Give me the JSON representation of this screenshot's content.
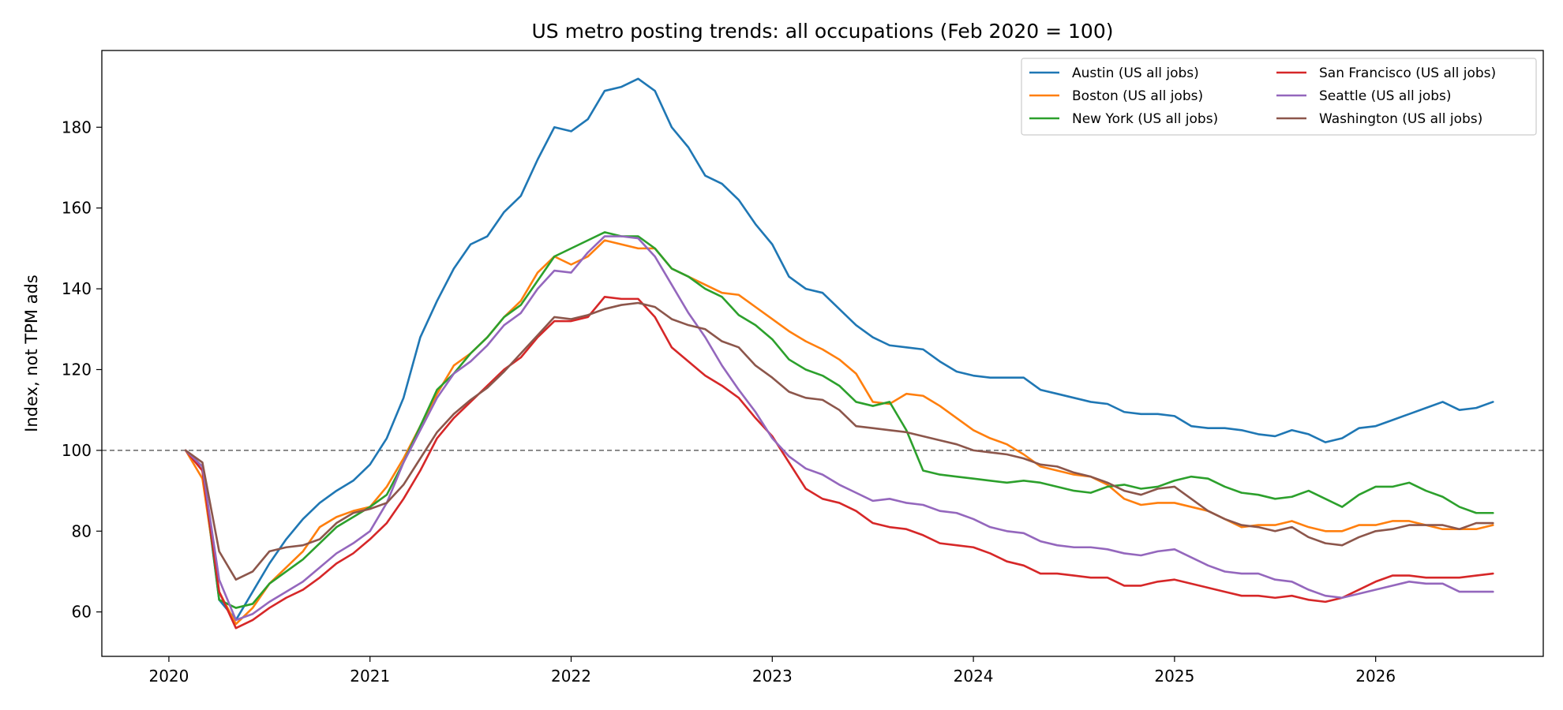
{
  "chart_data": {
    "type": "line",
    "title": "US metro posting trends: all occupations (Feb 2020 = 100)",
    "xlabel": "",
    "ylabel": "Index, not TPM ads",
    "x_start": "2020-02",
    "x_end": "2026-08",
    "x_frequency": "monthly",
    "xlim": [
      "2019-09",
      "2026-11"
    ],
    "ylim": [
      49,
      199
    ],
    "x_ticks": [
      "2020",
      "2021",
      "2022",
      "2023",
      "2024",
      "2025",
      "2026"
    ],
    "y_ticks": [
      60,
      80,
      100,
      120,
      140,
      160,
      180
    ],
    "reference_line": {
      "y": 100,
      "style": "dashed",
      "color": "#666666"
    },
    "grid": false,
    "legend": {
      "location": "top-right",
      "columns": 2
    },
    "series": [
      {
        "name": "Austin (US all jobs)",
        "color": "#1f77b4",
        "values": [
          100,
          95,
          63,
          58,
          65,
          72,
          78,
          83,
          87,
          90,
          92.5,
          96.5,
          103,
          113,
          128,
          137,
          145,
          151,
          153,
          159,
          163,
          172,
          180,
          179,
          182,
          189,
          190,
          192,
          189,
          180,
          175,
          168,
          166,
          162,
          156,
          151,
          143,
          140,
          139,
          135,
          131,
          128,
          126,
          125.5,
          125,
          122,
          119.5,
          118.5,
          118,
          118,
          118,
          115,
          114,
          113,
          112,
          111.5,
          109.5,
          109,
          109,
          108.5,
          106,
          105.5,
          105.5,
          105,
          104,
          103.5,
          105,
          104,
          102,
          103,
          105.5,
          106,
          107.5,
          109,
          110.5,
          112,
          110,
          110.5,
          112
        ]
      },
      {
        "name": "Boston (US all jobs)",
        "color": "#ff7f0e",
        "values": [
          100,
          93,
          65,
          57,
          61,
          67,
          71,
          75,
          81,
          83.5,
          85,
          86,
          91,
          98,
          106,
          114,
          121,
          124,
          128,
          133,
          137,
          144,
          148,
          146,
          148,
          152,
          151,
          150,
          150,
          145,
          143,
          141,
          139,
          138.5,
          135.5,
          132.5,
          129.5,
          127,
          125,
          122.5,
          119,
          112,
          111.5,
          114,
          113.5,
          111,
          108,
          105,
          103,
          101.5,
          99,
          96,
          95,
          94,
          93.5,
          91.5,
          88,
          86.5,
          87,
          87,
          86,
          85,
          83,
          81,
          81.5,
          81.5,
          82.5,
          81,
          80,
          80,
          81.5,
          81.5,
          82.5,
          82.5,
          81.5,
          80.5,
          80.5,
          80.5,
          81.5
        ]
      },
      {
        "name": "New York (US all jobs)",
        "color": "#2ca02c",
        "values": [
          100,
          96,
          63,
          61,
          62,
          67,
          70,
          73,
          77,
          81,
          83.5,
          86,
          89,
          97,
          106,
          115,
          119,
          124,
          128,
          133,
          136,
          142,
          148,
          150,
          152,
          154,
          153,
          153,
          150,
          145,
          143,
          140,
          138,
          133.5,
          131,
          127.5,
          122.5,
          120,
          118.5,
          116,
          112,
          111,
          112,
          105,
          95,
          94,
          93.5,
          93,
          92.5,
          92,
          92.5,
          92,
          91,
          90,
          89.5,
          91,
          91.5,
          90.5,
          91,
          92.5,
          93.5,
          93,
          91,
          89.5,
          89,
          88,
          88.5,
          90,
          88,
          86,
          89,
          91,
          91,
          92,
          90,
          88.5,
          86,
          84.5,
          84.5
        ]
      },
      {
        "name": "San Francisco (US all jobs)",
        "color": "#d62728",
        "values": [
          100,
          95,
          65,
          56,
          58,
          61,
          63.5,
          65.5,
          68.5,
          72,
          74.5,
          78,
          82,
          88,
          95,
          103,
          108,
          112,
          116,
          120,
          123,
          128,
          132,
          132,
          133,
          138,
          137.5,
          137.5,
          133,
          125.5,
          122,
          118.5,
          116,
          113,
          108,
          103.5,
          97,
          90.5,
          88,
          87,
          85,
          82,
          81,
          80.5,
          79,
          77,
          76.5,
          76,
          74.5,
          72.5,
          71.5,
          69.5,
          69.5,
          69,
          68.5,
          68.5,
          66.5,
          66.5,
          67.5,
          68,
          67,
          66,
          65,
          64,
          64,
          63.5,
          64,
          63,
          62.5,
          63.5,
          65.5,
          67.5,
          69,
          69,
          68.5,
          68.5,
          68.5,
          69,
          69.5
        ]
      },
      {
        "name": "Seattle (US all jobs)",
        "color": "#9467bd",
        "values": [
          100,
          96,
          68,
          58,
          59.5,
          62.5,
          65,
          67.5,
          71,
          74.5,
          77,
          80,
          87,
          97,
          105,
          113,
          119,
          122,
          126,
          131,
          134,
          140,
          144.5,
          144,
          149,
          153,
          153,
          152.5,
          148,
          141,
          134,
          128,
          121,
          115,
          109.5,
          103,
          98.5,
          95.5,
          94,
          91.5,
          89.5,
          87.5,
          88,
          87,
          86.5,
          85,
          84.5,
          83,
          81,
          80,
          79.5,
          77.5,
          76.5,
          76,
          76,
          75.5,
          74.5,
          74,
          75,
          75.5,
          73.5,
          71.5,
          70,
          69.5,
          69.5,
          68,
          67.5,
          65.5,
          64,
          63.5,
          64.5,
          65.5,
          66.5,
          67.5,
          67,
          67,
          65,
          65,
          65
        ]
      },
      {
        "name": "Washington (US all jobs)",
        "color": "#8c564b",
        "values": [
          100,
          97,
          75,
          68,
          70,
          75,
          76,
          76.5,
          78,
          82,
          84.5,
          85.5,
          87,
          91.5,
          98,
          104.5,
          109,
          112.5,
          115.5,
          119.5,
          124,
          128.5,
          133,
          132.5,
          133.5,
          135,
          136,
          136.5,
          135.5,
          132.5,
          131,
          130,
          127,
          125.5,
          121,
          118,
          114.5,
          113,
          112.5,
          110,
          106,
          105.5,
          105,
          104.5,
          103.5,
          102.5,
          101.5,
          100,
          99.5,
          99,
          98,
          96.5,
          96,
          94.5,
          93.5,
          92,
          90,
          89,
          90.5,
          91,
          88,
          85,
          83,
          81.5,
          81,
          80,
          81,
          78.5,
          77,
          76.5,
          78.5,
          80,
          80.5,
          81.5,
          81.5,
          81.5,
          80.5,
          82,
          82
        ]
      }
    ]
  }
}
